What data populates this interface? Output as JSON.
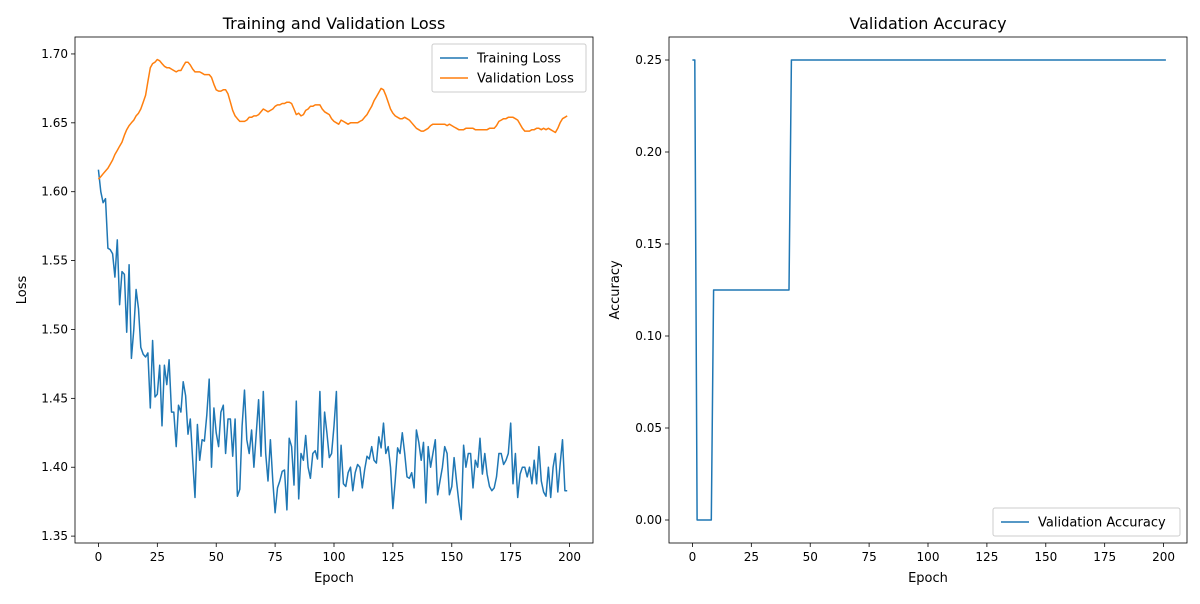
{
  "chart_data": [
    {
      "type": "line",
      "title": "Training and Validation Loss",
      "xlabel": "Epoch",
      "ylabel": "Loss",
      "xlim": [
        -9.95,
        209.95
      ],
      "ylim": [
        1.345,
        1.7123
      ],
      "xticks": [
        0,
        25,
        50,
        75,
        100,
        125,
        150,
        175,
        200
      ],
      "yticks": [
        1.35,
        1.4,
        1.45,
        1.5,
        1.55,
        1.6,
        1.65,
        1.7
      ],
      "ytick_labels": [
        "1.35",
        "1.40",
        "1.45",
        "1.50",
        "1.55",
        "1.60",
        "1.65",
        "1.70"
      ],
      "grid": false,
      "legend_position": "top-right",
      "series": [
        {
          "name": "Training Loss",
          "color": "#1f77b4",
          "values": [
            1.616,
            1.6,
            1.592,
            1.595,
            1.559,
            1.558,
            1.555,
            1.538,
            1.565,
            1.518,
            1.542,
            1.54,
            1.498,
            1.547,
            1.479,
            1.5,
            1.529,
            1.515,
            1.487,
            1.482,
            1.48,
            1.483,
            1.443,
            1.492,
            1.451,
            1.453,
            1.474,
            1.43,
            1.474,
            1.46,
            1.478,
            1.44,
            1.44,
            1.415,
            1.445,
            1.44,
            1.462,
            1.452,
            1.424,
            1.435,
            1.405,
            1.378,
            1.431,
            1.405,
            1.42,
            1.419,
            1.438,
            1.464,
            1.4,
            1.443,
            1.425,
            1.415,
            1.44,
            1.445,
            1.41,
            1.435,
            1.435,
            1.408,
            1.435,
            1.379,
            1.384,
            1.43,
            1.456,
            1.42,
            1.41,
            1.427,
            1.4,
            1.425,
            1.449,
            1.408,
            1.455,
            1.41,
            1.39,
            1.42,
            1.39,
            1.367,
            1.385,
            1.39,
            1.397,
            1.398,
            1.369,
            1.421,
            1.415,
            1.387,
            1.448,
            1.377,
            1.41,
            1.405,
            1.423,
            1.4,
            1.392,
            1.41,
            1.412,
            1.406,
            1.455,
            1.4,
            1.44,
            1.425,
            1.407,
            1.41,
            1.43,
            1.455,
            1.378,
            1.416,
            1.388,
            1.386,
            1.396,
            1.4,
            1.383,
            1.396,
            1.402,
            1.4,
            1.385,
            1.398,
            1.408,
            1.406,
            1.415,
            1.405,
            1.403,
            1.422,
            1.414,
            1.432,
            1.41,
            1.415,
            1.4,
            1.37,
            1.39,
            1.414,
            1.41,
            1.425,
            1.41,
            1.393,
            1.392,
            1.396,
            1.385,
            1.427,
            1.418,
            1.405,
            1.418,
            1.374,
            1.415,
            1.4,
            1.41,
            1.42,
            1.38,
            1.39,
            1.4,
            1.415,
            1.41,
            1.38,
            1.386,
            1.407,
            1.39,
            1.375,
            1.362,
            1.416,
            1.4,
            1.41,
            1.41,
            1.385,
            1.405,
            1.4,
            1.421,
            1.395,
            1.41,
            1.395,
            1.386,
            1.383,
            1.385,
            1.393,
            1.41,
            1.41,
            1.402,
            1.405,
            1.41,
            1.432,
            1.388,
            1.41,
            1.378,
            1.395,
            1.4,
            1.4,
            1.393,
            1.4,
            1.388,
            1.405,
            1.388,
            1.415,
            1.39,
            1.382,
            1.379,
            1.4,
            1.378,
            1.4,
            1.41,
            1.382,
            1.402,
            1.42,
            1.383,
            1.383
          ]
        },
        {
          "name": "Validation Loss",
          "color": "#ff7f0e",
          "values": [
            1.609,
            1.611,
            1.613,
            1.615,
            1.617,
            1.62,
            1.623,
            1.627,
            1.63,
            1.633,
            1.636,
            1.641,
            1.645,
            1.648,
            1.65,
            1.652,
            1.655,
            1.657,
            1.66,
            1.665,
            1.67,
            1.68,
            1.69,
            1.693,
            1.694,
            1.696,
            1.695,
            1.693,
            1.691,
            1.69,
            1.69,
            1.689,
            1.688,
            1.687,
            1.688,
            1.688,
            1.691,
            1.694,
            1.694,
            1.692,
            1.689,
            1.687,
            1.687,
            1.687,
            1.686,
            1.685,
            1.685,
            1.685,
            1.683,
            1.678,
            1.674,
            1.673,
            1.673,
            1.674,
            1.674,
            1.671,
            1.665,
            1.659,
            1.655,
            1.653,
            1.651,
            1.651,
            1.651,
            1.652,
            1.654,
            1.654,
            1.655,
            1.655,
            1.656,
            1.658,
            1.66,
            1.659,
            1.658,
            1.659,
            1.66,
            1.662,
            1.663,
            1.663,
            1.664,
            1.664,
            1.665,
            1.665,
            1.664,
            1.66,
            1.656,
            1.657,
            1.655,
            1.656,
            1.659,
            1.66,
            1.662,
            1.662,
            1.663,
            1.663,
            1.663,
            1.66,
            1.658,
            1.657,
            1.656,
            1.653,
            1.651,
            1.65,
            1.649,
            1.652,
            1.651,
            1.65,
            1.649,
            1.65,
            1.65,
            1.65,
            1.65,
            1.651,
            1.652,
            1.654,
            1.656,
            1.659,
            1.662,
            1.666,
            1.669,
            1.672,
            1.675,
            1.674,
            1.67,
            1.665,
            1.66,
            1.657,
            1.655,
            1.654,
            1.653,
            1.653,
            1.654,
            1.653,
            1.652,
            1.65,
            1.648,
            1.646,
            1.645,
            1.644,
            1.644,
            1.645,
            1.646,
            1.648,
            1.649,
            1.649,
            1.649,
            1.649,
            1.649,
            1.649,
            1.648,
            1.649,
            1.648,
            1.647,
            1.646,
            1.645,
            1.645,
            1.645,
            1.646,
            1.646,
            1.646,
            1.646,
            1.645,
            1.645,
            1.645,
            1.645,
            1.645,
            1.645,
            1.646,
            1.646,
            1.646,
            1.648,
            1.651,
            1.652,
            1.653,
            1.653,
            1.654,
            1.654,
            1.654,
            1.653,
            1.652,
            1.649,
            1.646,
            1.644,
            1.644,
            1.644,
            1.645,
            1.645,
            1.646,
            1.646,
            1.645,
            1.646,
            1.645,
            1.646,
            1.645,
            1.644,
            1.643,
            1.646,
            1.65,
            1.653,
            1.654,
            1.655
          ]
        }
      ]
    },
    {
      "type": "line",
      "title": "Validation Accuracy",
      "xlabel": "Epoch",
      "ylabel": "Accuracy",
      "xlim": [
        -9.95,
        209.95
      ],
      "ylim": [
        -0.0125,
        0.2625
      ],
      "xticks": [
        0,
        25,
        50,
        75,
        100,
        125,
        150,
        175,
        200
      ],
      "yticks": [
        0.0,
        0.05,
        0.1,
        0.15,
        0.2,
        0.25
      ],
      "ytick_labels": [
        "0.00",
        "0.05",
        "0.10",
        "0.15",
        "0.20",
        "0.25"
      ],
      "grid": false,
      "legend_position": "lower-right",
      "series": [
        {
          "name": "Validation Accuracy",
          "color": "#1f77b4",
          "values": [
            0.25,
            0.25,
            0,
            0,
            0,
            0,
            0,
            0,
            0,
            0.125,
            0.125,
            0.125,
            0.125,
            0.125,
            0.125,
            0.125,
            0.125,
            0.125,
            0.125,
            0.125,
            0.125,
            0.125,
            0.125,
            0.125,
            0.125,
            0.125,
            0.125,
            0.125,
            0.125,
            0.125,
            0.125,
            0.125,
            0.125,
            0.125,
            0.125,
            0.125,
            0.125,
            0.125,
            0.125,
            0.125,
            0.125,
            0.125,
            0.25,
            0.25,
            0.25,
            0.25,
            0.25,
            0.25,
            0.25,
            0.25,
            0.25,
            0.25,
            0.25,
            0.25,
            0.25,
            0.25,
            0.25,
            0.25,
            0.25,
            0.25,
            0.25,
            0.25,
            0.25,
            0.25,
            0.25,
            0.25,
            0.25,
            0.25,
            0.25,
            0.25,
            0.25,
            0.25,
            0.25,
            0.25,
            0.25,
            0.25,
            0.25,
            0.25,
            0.25,
            0.25,
            0.25,
            0.25,
            0.25,
            0.25,
            0.25,
            0.25,
            0.25,
            0.25,
            0.25,
            0.25,
            0.25,
            0.25,
            0.25,
            0.25,
            0.25,
            0.25,
            0.25,
            0.25,
            0.25,
            0.25,
            0.25,
            0.25,
            0.25,
            0.25,
            0.25,
            0.25,
            0.25,
            0.25,
            0.25,
            0.25,
            0.25,
            0.25,
            0.25,
            0.25,
            0.25,
            0.25,
            0.25,
            0.25,
            0.25,
            0.25,
            0.25,
            0.25,
            0.25,
            0.25,
            0.25,
            0.25,
            0.25,
            0.25,
            0.25,
            0.25,
            0.25,
            0.25,
            0.25,
            0.25,
            0.25,
            0.25,
            0.25,
            0.25,
            0.25,
            0.25,
            0.25,
            0.25,
            0.25,
            0.25,
            0.25,
            0.25,
            0.25,
            0.25,
            0.25,
            0.25,
            0.25,
            0.25,
            0.25,
            0.25,
            0.25,
            0.25,
            0.25,
            0.25,
            0.25,
            0.25,
            0.25,
            0.25,
            0.25,
            0.25,
            0.25,
            0.25,
            0.25,
            0.25,
            0.25,
            0.25,
            0.25,
            0.25,
            0.25,
            0.25,
            0.25,
            0.25,
            0.25,
            0.25,
            0.25,
            0.25,
            0.25,
            0.25,
            0.25,
            0.25,
            0.25,
            0.25,
            0.25,
            0.25,
            0.25,
            0.25,
            0.25,
            0.25,
            0.25,
            0.25,
            0.25,
            0.25,
            0.25,
            0.25,
            0.25,
            0.25,
            0.25,
            0.25
          ]
        }
      ]
    }
  ]
}
